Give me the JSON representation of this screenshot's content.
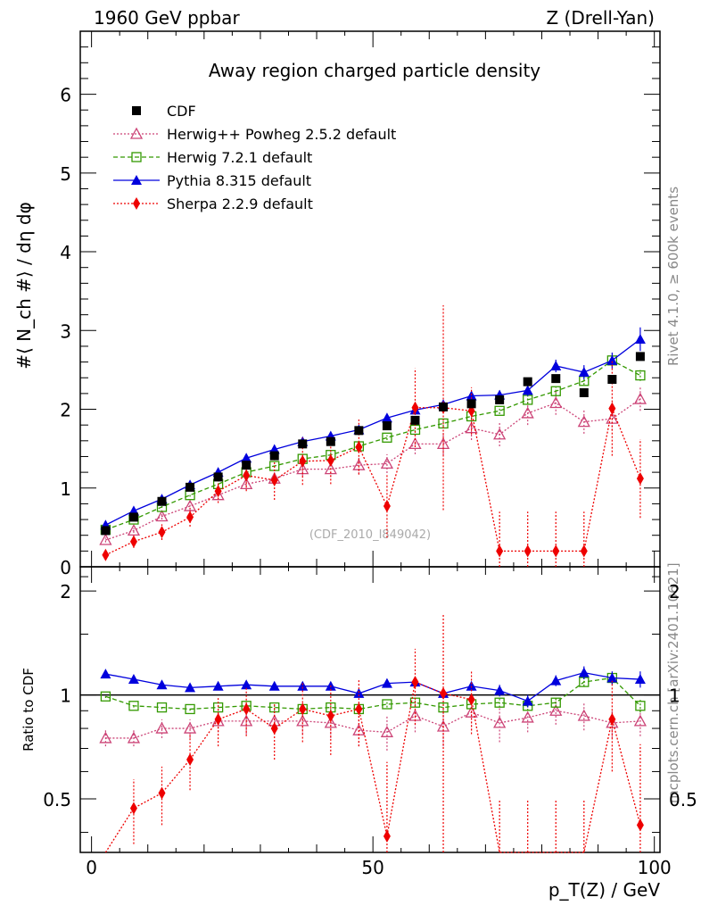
{
  "header": {
    "left": "1960 GeV ppbar",
    "right": "Z (Drell-Yan)"
  },
  "side_text": {
    "rivet": "Rivet 4.1.0, ≥ 600k events",
    "site": "mcplots.cern.ch [arXiv:2401.10621]"
  },
  "colors": {
    "cdf": "#000000",
    "herwigpp": "#cc4477",
    "herwig7": "#339900",
    "pythia": "#0000dd",
    "sherpa": "#ee0000"
  },
  "chart_data": {
    "type": "scatter",
    "title": "Away region charged particle density",
    "analysis_label": "(CDF_2010_I849042)",
    "xlabel": "p_T(Z) / GeV",
    "ylabel": "#⟨ N_ch #⟩ / dη dφ",
    "ratio_ylabel": "Ratio to CDF",
    "xlim": [
      -2,
      101
    ],
    "ylim": [
      0,
      6.8
    ],
    "ratio_ylim": [
      0.35,
      2.35
    ],
    "x_ticks": [
      0,
      50,
      100
    ],
    "y_ticks": [
      0,
      1,
      2,
      3,
      4,
      5,
      6
    ],
    "ratio_ticks": [
      0.5,
      1,
      2
    ],
    "ratio_tick_labels": [
      "0.5",
      "1",
      "2"
    ],
    "x": [
      2.5,
      7.5,
      12.5,
      17.5,
      22.5,
      27.5,
      32.5,
      37.5,
      42.5,
      47.5,
      52.5,
      57.5,
      62.5,
      67.5,
      72.5,
      77.5,
      82.5,
      87.5,
      92.5,
      97.5
    ],
    "series": [
      {
        "name": "CDF",
        "key": "cdf",
        "values": [
          0.46,
          0.63,
          0.83,
          1.01,
          1.14,
          1.29,
          1.41,
          1.56,
          1.59,
          1.73,
          1.79,
          1.86,
          2.03,
          2.07,
          2.12,
          2.35,
          2.39,
          2.21,
          2.38,
          2.67
        ],
        "errors": [
          0.02,
          0.02,
          0.02,
          0.02,
          0.02,
          0.02,
          0.03,
          0.03,
          0.03,
          0.03,
          0.03,
          0.04,
          0.04,
          0.04,
          0.04,
          0.05,
          0.05,
          0.05,
          0.05,
          0.05
        ]
      },
      {
        "name": "Herwig++ Powheg 2.5.2 default",
        "key": "herwigpp",
        "values": [
          0.34,
          0.46,
          0.64,
          0.77,
          0.91,
          1.05,
          1.12,
          1.24,
          1.24,
          1.29,
          1.31,
          1.56,
          1.56,
          1.76,
          1.68,
          1.95,
          2.08,
          1.84,
          1.88,
          2.13
        ],
        "errors": [
          0.03,
          0.03,
          0.04,
          0.05,
          0.06,
          0.07,
          0.08,
          0.09,
          0.1,
          0.11,
          0.12,
          0.13,
          0.14,
          0.15,
          0.15,
          0.15,
          0.15,
          0.15,
          0.15,
          0.15
        ]
      },
      {
        "name": "Herwig 7.2.1 default",
        "key": "herwig7",
        "values": [
          0.47,
          0.6,
          0.76,
          0.91,
          1.05,
          1.2,
          1.28,
          1.37,
          1.42,
          1.53,
          1.64,
          1.74,
          1.82,
          1.91,
          1.98,
          2.12,
          2.23,
          2.36,
          2.62,
          2.43
        ],
        "errors": [
          0.01,
          0.01,
          0.01,
          0.02,
          0.02,
          0.02,
          0.02,
          0.03,
          0.03,
          0.03,
          0.03,
          0.03,
          0.04,
          0.04,
          0.04,
          0.05,
          0.05,
          0.05,
          0.06,
          0.07
        ]
      },
      {
        "name": "Pythia 8.315 default",
        "key": "pythia",
        "values": [
          0.53,
          0.71,
          0.86,
          1.04,
          1.2,
          1.38,
          1.49,
          1.59,
          1.66,
          1.74,
          1.89,
          1.99,
          2.06,
          2.17,
          2.18,
          2.24,
          2.55,
          2.47,
          2.62,
          2.89
        ],
        "errors": [
          0.01,
          0.01,
          0.01,
          0.02,
          0.02,
          0.02,
          0.02,
          0.03,
          0.03,
          0.03,
          0.04,
          0.04,
          0.05,
          0.06,
          0.06,
          0.07,
          0.08,
          0.09,
          0.1,
          0.15
        ]
      },
      {
        "name": "Sherpa 2.2.9 default",
        "key": "sherpa",
        "values": [
          0.15,
          0.32,
          0.44,
          0.63,
          0.96,
          1.16,
          1.1,
          1.34,
          1.35,
          1.52,
          0.77,
          2.02,
          2.02,
          1.98,
          0.2,
          0.2,
          0.2,
          0.2,
          2.01,
          1.12
        ],
        "errors": [
          0.05,
          0.08,
          0.1,
          0.12,
          0.15,
          0.2,
          0.25,
          0.3,
          0.3,
          0.35,
          0.4,
          0.5,
          1.3,
          0.3,
          0.5,
          0.5,
          0.5,
          0.5,
          0.6,
          0.5
        ]
      }
    ],
    "ratios": {
      "herwigpp": [
        0.75,
        0.75,
        0.8,
        0.8,
        0.84,
        0.84,
        0.84,
        0.84,
        0.83,
        0.79,
        0.78,
        0.87,
        0.81,
        0.89,
        0.83,
        0.86,
        0.9,
        0.87,
        0.83,
        0.84
      ],
      "herwigpp_err": [
        0.04,
        0.04,
        0.05,
        0.05,
        0.06,
        0.07,
        0.07,
        0.07,
        0.08,
        0.08,
        0.09,
        0.09,
        0.1,
        0.1,
        0.1,
        0.08,
        0.08,
        0.08,
        0.08,
        0.08
      ],
      "herwig7": [
        0.99,
        0.93,
        0.92,
        0.91,
        0.92,
        0.93,
        0.92,
        0.91,
        0.92,
        0.91,
        0.94,
        0.95,
        0.92,
        0.94,
        0.95,
        0.93,
        0.95,
        1.09,
        1.12,
        0.93
      ],
      "herwig7_err": [
        0.01,
        0.01,
        0.01,
        0.01,
        0.02,
        0.02,
        0.02,
        0.02,
        0.02,
        0.02,
        0.02,
        0.02,
        0.03,
        0.03,
        0.03,
        0.03,
        0.03,
        0.03,
        0.04,
        0.04
      ],
      "pythia": [
        1.15,
        1.11,
        1.07,
        1.05,
        1.06,
        1.07,
        1.06,
        1.06,
        1.06,
        1.01,
        1.08,
        1.09,
        1.01,
        1.06,
        1.03,
        0.96,
        1.1,
        1.16,
        1.12,
        1.11
      ],
      "pythia_err": [
        0.01,
        0.01,
        0.01,
        0.01,
        0.01,
        0.02,
        0.02,
        0.02,
        0.02,
        0.02,
        0.02,
        0.03,
        0.03,
        0.03,
        0.04,
        0.04,
        0.04,
        0.05,
        0.05,
        0.06
      ],
      "sherpa": [
        0.3,
        0.47,
        0.52,
        0.65,
        0.85,
        0.91,
        0.8,
        0.91,
        0.87,
        0.91,
        0.39,
        1.09,
        1.01,
        0.97,
        0.2,
        0.2,
        0.2,
        0.2,
        0.85,
        0.42
      ],
      "sherpa_err": [
        0.05,
        0.1,
        0.1,
        0.12,
        0.14,
        0.15,
        0.15,
        0.18,
        0.2,
        0.2,
        0.25,
        0.27,
        0.7,
        0.2,
        0.3,
        0.3,
        0.3,
        0.3,
        0.25,
        0.3
      ]
    }
  }
}
